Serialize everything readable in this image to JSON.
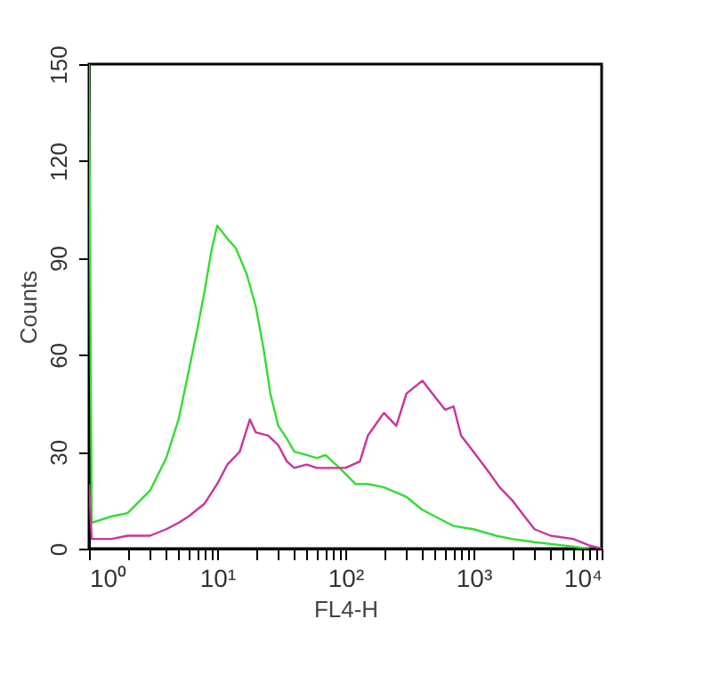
{
  "chart_data": {
    "type": "line",
    "xlabel": "FL4-H",
    "ylabel": "Counts",
    "log": "x",
    "xlim": [
      1,
      10000
    ],
    "ylim": [
      0,
      150
    ],
    "xticks": [
      {
        "value": 1,
        "label": "10⁰"
      },
      {
        "value": 2,
        "label": null
      },
      {
        "value": 3,
        "label": null
      },
      {
        "value": 4,
        "label": null
      },
      {
        "value": 5,
        "label": null
      },
      {
        "value": 6,
        "label": null
      },
      {
        "value": 7,
        "label": null
      },
      {
        "value": 8,
        "label": null
      },
      {
        "value": 9,
        "label": null
      },
      {
        "value": 10,
        "label": "10¹"
      },
      {
        "value": 20,
        "label": null
      },
      {
        "value": 30,
        "label": null
      },
      {
        "value": 40,
        "label": null
      },
      {
        "value": 50,
        "label": null
      },
      {
        "value": 60,
        "label": null
      },
      {
        "value": 70,
        "label": null
      },
      {
        "value": 80,
        "label": null
      },
      {
        "value": 90,
        "label": null
      },
      {
        "value": 100,
        "label": "10²"
      },
      {
        "value": 200,
        "label": null
      },
      {
        "value": 300,
        "label": null
      },
      {
        "value": 400,
        "label": null
      },
      {
        "value": 500,
        "label": null
      },
      {
        "value": 600,
        "label": null
      },
      {
        "value": 700,
        "label": null
      },
      {
        "value": 800,
        "label": null
      },
      {
        "value": 900,
        "label": null
      },
      {
        "value": 1000,
        "label": "10³"
      },
      {
        "value": 2000,
        "label": null
      },
      {
        "value": 3000,
        "label": null
      },
      {
        "value": 4000,
        "label": null
      },
      {
        "value": 5000,
        "label": null
      },
      {
        "value": 6000,
        "label": null
      },
      {
        "value": 7000,
        "label": null
      },
      {
        "value": 8000,
        "label": null
      },
      {
        "value": 9000,
        "label": null
      },
      {
        "value": 10000,
        "label": "10⁴"
      }
    ],
    "yticks": [
      0,
      30,
      60,
      90,
      120,
      150
    ],
    "grid": false,
    "marker": "none",
    "line_style": "solid",
    "series": [
      {
        "color": "#33dd33",
        "x": [
          1,
          1.05,
          1.5,
          2,
          3,
          4,
          5,
          6,
          7,
          8,
          9,
          10,
          12,
          14,
          17,
          20,
          23,
          26,
          30,
          35,
          40,
          50,
          60,
          70,
          90,
          120,
          150,
          200,
          300,
          400,
          500,
          700,
          1000,
          1500,
          2000,
          3000,
          5000,
          8000
        ],
        "values": [
          150,
          8,
          10,
          11,
          18,
          28,
          40,
          55,
          68,
          80,
          92,
          100,
          96,
          93,
          85,
          75,
          62,
          48,
          38,
          34,
          30,
          29,
          28,
          29,
          25,
          20,
          20,
          19,
          16,
          12,
          10,
          7,
          6,
          4,
          3,
          2,
          1,
          0
        ]
      },
      {
        "color": "#cc3399",
        "x": [
          1,
          1.05,
          1.5,
          2,
          3,
          4,
          5,
          6,
          8,
          10,
          12,
          15,
          18,
          20,
          25,
          30,
          35,
          40,
          50,
          60,
          80,
          100,
          130,
          150,
          200,
          250,
          300,
          400,
          500,
          600,
          700,
          800,
          1000,
          1300,
          1600,
          2000,
          2500,
          3000,
          4000,
          6000,
          8000,
          10000
        ],
        "values": [
          20,
          3,
          3,
          4,
          4,
          6,
          8,
          10,
          14,
          20,
          26,
          30,
          40,
          36,
          35,
          32,
          27,
          25,
          26,
          25,
          25,
          25,
          27,
          35,
          42,
          38,
          48,
          52,
          47,
          43,
          44,
          35,
          30,
          24,
          19,
          15,
          10,
          6,
          4,
          3,
          1,
          0
        ]
      }
    ]
  }
}
